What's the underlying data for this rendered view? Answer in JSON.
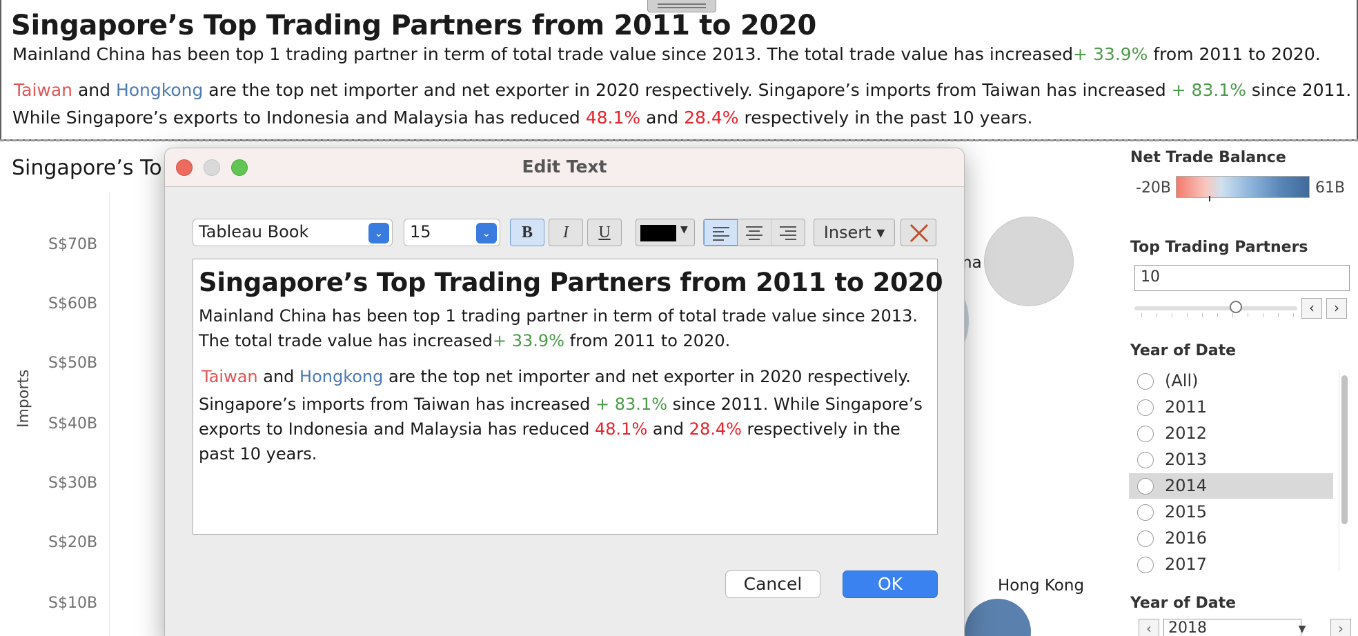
{
  "banner": {
    "title": "Singapore’s Top Trading Partners from 2011 to 2020",
    "line1_a": "Mainland China has been top 1 trading partner in term of total trade value since 2013. The total trade value has increased",
    "line1_pct": "+ 33.9%",
    "line1_b": " from 2011 to 2020.",
    "line2_taiwan": "Taiwan",
    "line2_and": " and ",
    "line2_hk": "Hongkong",
    "line2_a": " are the top net importer and net exporter in 2020 respectively. Singapore’s imports from Taiwan has increased ",
    "line2_pct": "+ 83.1%",
    "line2_b": " since 2011.",
    "line3_a": "While Singapore’s exports to Indonesia and Malaysia has reduced ",
    "line3_pct1": "48.1%",
    "line3_and": " and ",
    "line3_pct2": "28.4%",
    "line3_b": " respectively in the past 10 years."
  },
  "chart": {
    "title_partial": "Singapore’s To",
    "ylabel": "Imports",
    "y_ticks": [
      "S$70B",
      "S$60B",
      "S$50B",
      "S$40B",
      "S$30B",
      "S$20B",
      "S$10B"
    ],
    "label_partial_china": "na",
    "label_hongkong": "Hong Kong"
  },
  "sidebar": {
    "net_trade_balance_title": "Net Trade Balance",
    "ntb_min": "-20B",
    "ntb_max": "61B",
    "top_partners_title": "Top Trading Partners",
    "top_partners_value": "10",
    "slider_prev": "‹",
    "slider_next": "›",
    "year_title": "Year of Date",
    "years": [
      "(All)",
      "2011",
      "2012",
      "2013",
      "2014",
      "2015",
      "2016",
      "2017"
    ],
    "year_hovered": "2014",
    "year2_title": "Year of Date",
    "year2_value": "2018",
    "year2_prev": "‹",
    "year2_next": "›"
  },
  "dialog": {
    "title": "Edit Text",
    "font_family": "Tableau Book",
    "font_size": "15",
    "bold_label": "B",
    "italic_label": "I",
    "underline_label": "U",
    "insert_label": "Insert ▾",
    "text_color": "#000000",
    "editor": {
      "title": "Singapore’s Top Trading Partners from 2011 to 2020",
      "p1_l1": "Mainland China has been top 1 trading partner in term of total trade value since 2013.",
      "p1_l2_a": "The total trade value has increased",
      "p1_l2_pct": "+ 33.9%",
      "p1_l2_b": " from 2011 to 2020.",
      "p2_l1_taiwan": "Taiwan",
      "p2_l1_and": " and ",
      "p2_l1_hk": "Hongkong",
      "p2_l1_b": " are the top net importer and net exporter in 2020 respectively.",
      "p2_l2_a": "Singapore’s imports from Taiwan has increased ",
      "p2_l2_pct": "+ 83.1%",
      "p2_l2_b": " since 2011. While Singapore’s",
      "p2_l3_a": "exports to Indonesia and Malaysia has reduced ",
      "p2_l3_pct1": "48.1%",
      "p2_l3_and": " and ",
      "p2_l3_pct2": "28.4%",
      "p2_l3_b": " respectively in the",
      "p2_l4": "past 10 years."
    },
    "cancel_label": "Cancel",
    "ok_label": "OK"
  },
  "colors": {
    "positive_green": "#4c9a4a",
    "negative_red": "#e8212a",
    "taiwan_red": "#e05555",
    "hongkong_blue": "#4c7ab4",
    "ok_button_blue": "#3a82ef"
  }
}
